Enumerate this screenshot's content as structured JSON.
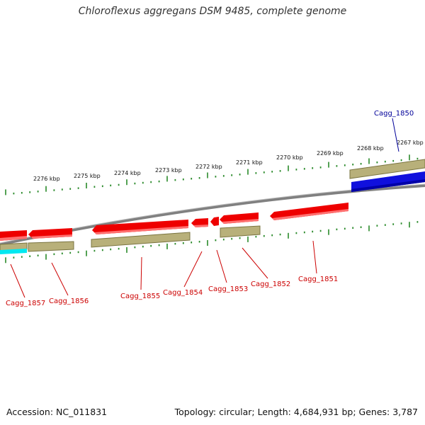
{
  "title": "Chloroflexus aggregans DSM 9485, complete genome",
  "footer": {
    "accession_label": "Accession:",
    "accession": "NC_011831",
    "topology_text": "Topology: circular; Length: 4,684,931 bp; Genes: 3,787"
  },
  "colors": {
    "forward_gene": "#ee0000",
    "reverse_gene": "#1010dd",
    "cds": "#b8b07a",
    "cds_edge": "#7a7440",
    "special_cds": "#00e8f0",
    "backbone": "#808080",
    "tick": "#2a8a2a",
    "label_red": "#cc0000",
    "label_blue": "#000099"
  },
  "kbp_ticks": [
    "2276 kbp",
    "2275 kbp",
    "2274 kbp",
    "2273 kbp",
    "2272 kbp",
    "2271 kbp",
    "2270 kbp",
    "2269 kbp",
    "2268 kbp",
    "2267 kbp"
  ],
  "gene_labels": [
    {
      "id": "Cagg_1857",
      "color": "label_red"
    },
    {
      "id": "Cagg_1856",
      "color": "label_red"
    },
    {
      "id": "Cagg_1855",
      "color": "label_red"
    },
    {
      "id": "Cagg_1854",
      "color": "label_red"
    },
    {
      "id": "Cagg_1853",
      "color": "label_red"
    },
    {
      "id": "Cagg_1852",
      "color": "label_red"
    },
    {
      "id": "Cagg_1851",
      "color": "label_red"
    },
    {
      "id": "Cagg_1850",
      "color": "label_blue"
    }
  ]
}
